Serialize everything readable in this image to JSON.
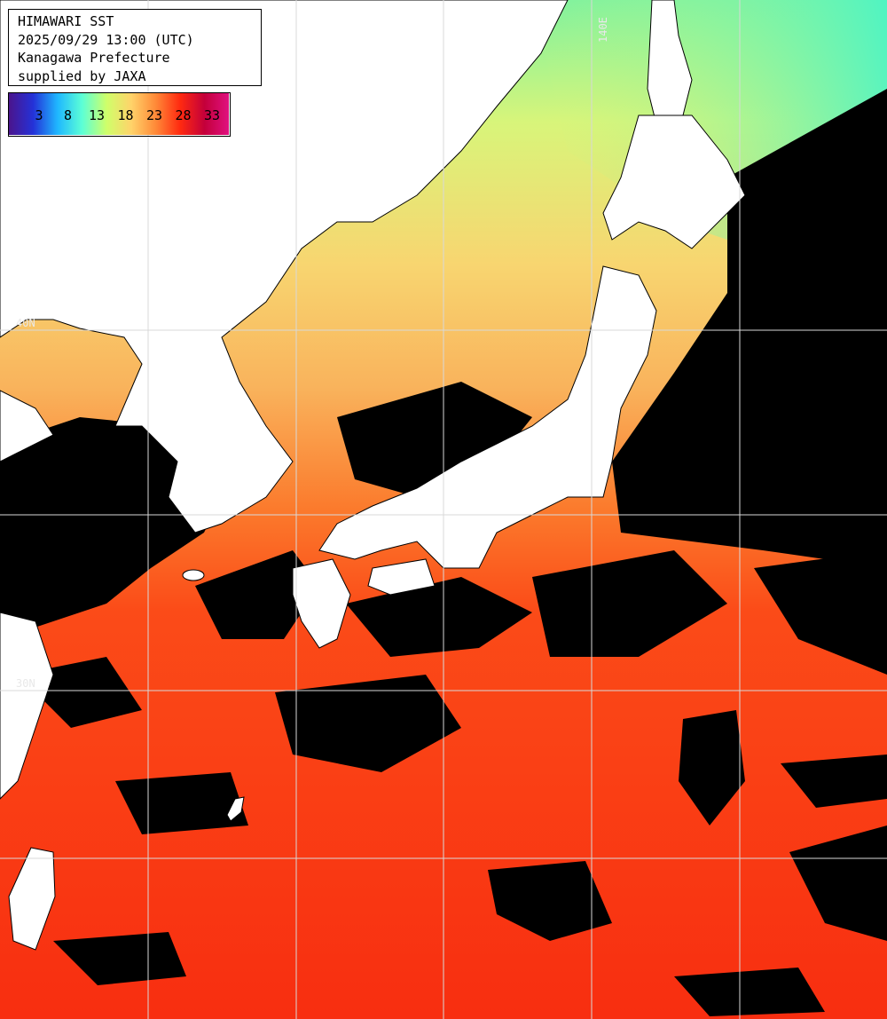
{
  "header": {
    "line1": "HIMAWARI SST",
    "line2": "2025/09/29 13:00 (UTC)",
    "line3": "Kanagawa Prefecture",
    "line4": "supplied by JAXA"
  },
  "colorbar": {
    "ticks": [
      "3",
      "8",
      "13",
      "18",
      "23",
      "28",
      "33"
    ],
    "colors": [
      "#4b148c",
      "#2432d8",
      "#1fb8ff",
      "#5cffd6",
      "#cfff6a",
      "#ffd36a",
      "#ff8a38",
      "#ff2a10",
      "#c4003a",
      "#e01080"
    ]
  },
  "grid": {
    "labels": [
      "140E",
      "40N",
      "30N"
    ]
  },
  "colors": {
    "land": "#ffffff",
    "cloud": "#000000",
    "grid": "#d8d8d8"
  }
}
